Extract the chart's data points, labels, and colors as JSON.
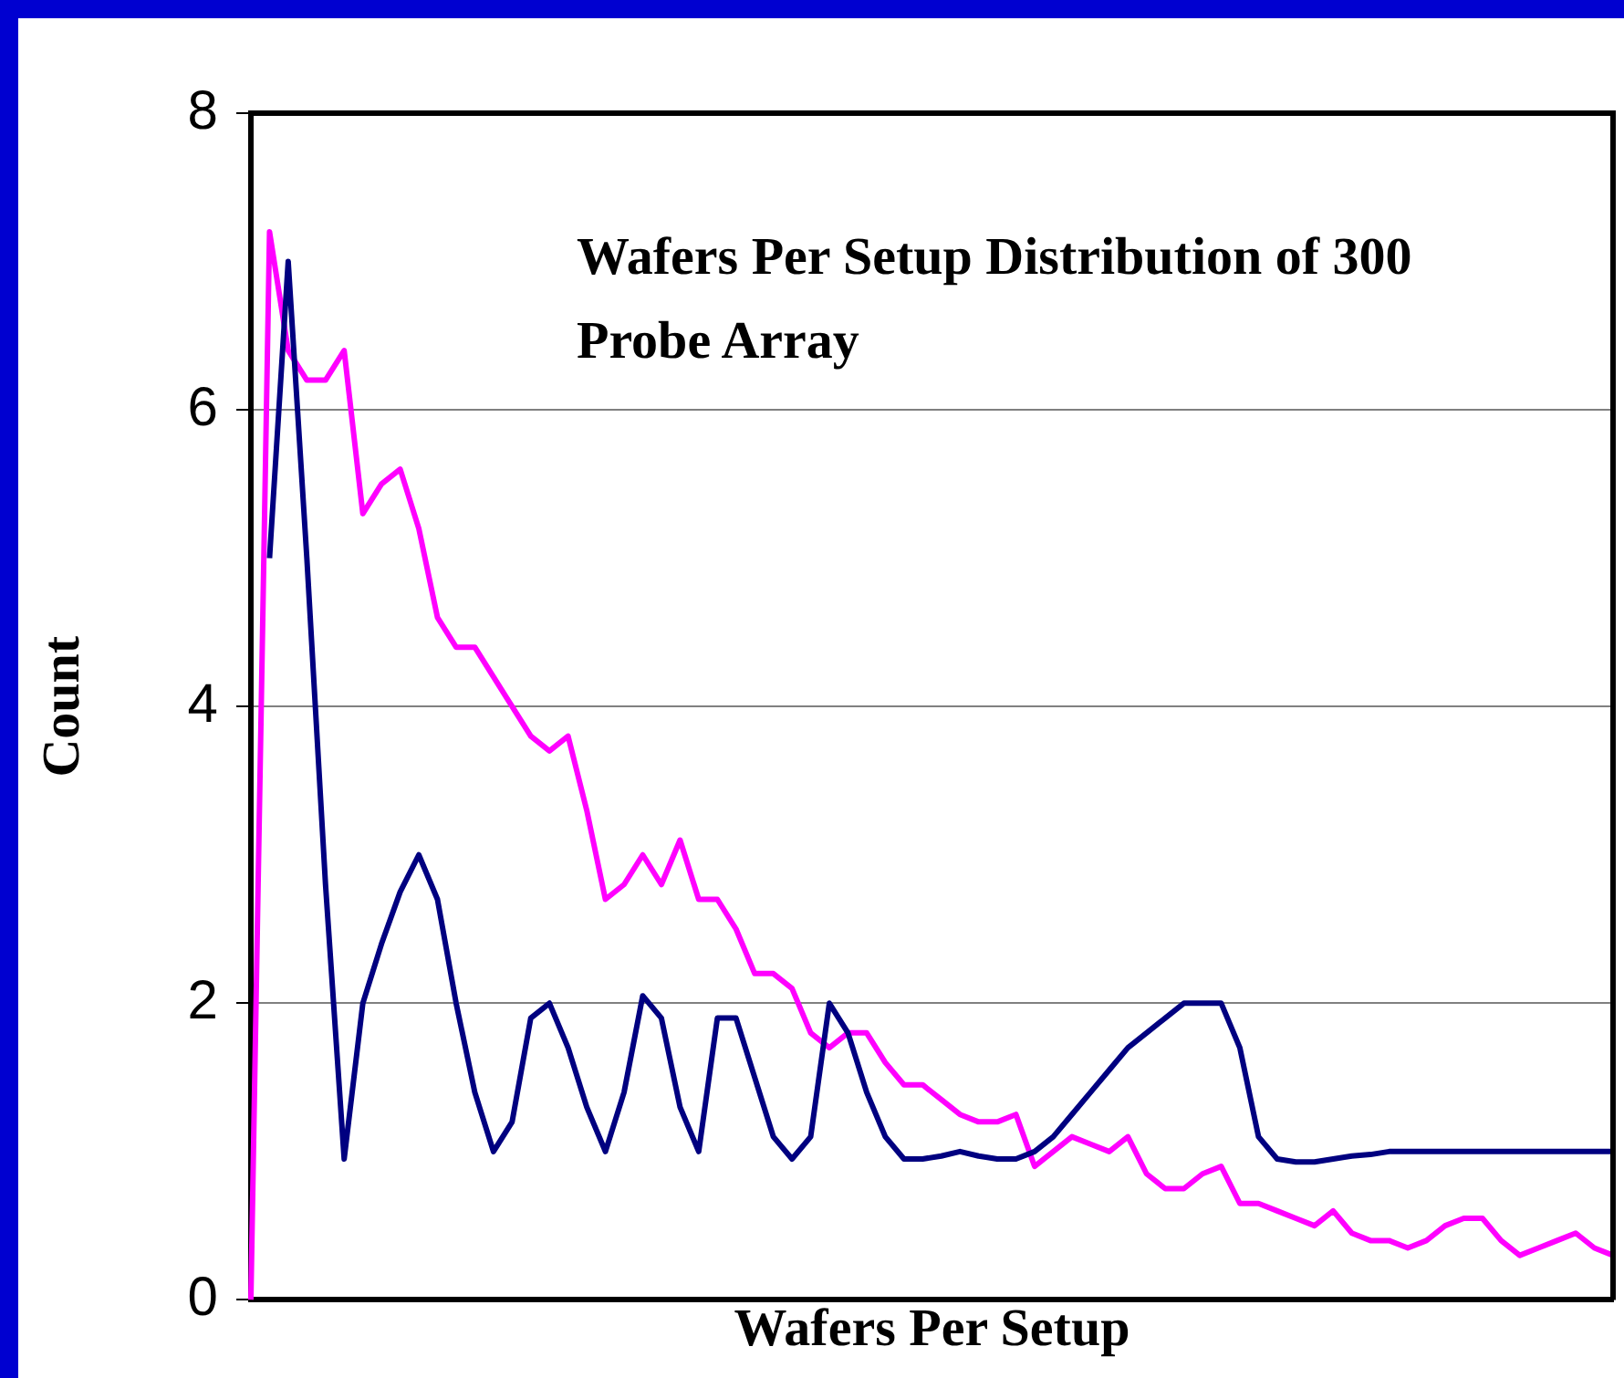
{
  "chart_data": {
    "type": "line",
    "title": "Wafers Per Setup Distribution of 300 Probe Array",
    "xlabel": "Wafers Per Setup",
    "ylabel": "Count",
    "categories": [
      null,
      null,
      null,
      null,
      null,
      null,
      null,
      null,
      null,
      null,
      null,
      null,
      null,
      null,
      null,
      null,
      null,
      null,
      null,
      null,
      null,
      null,
      null,
      null,
      null,
      null,
      null,
      null,
      null,
      null,
      null,
      null,
      null,
      null,
      null,
      null,
      null,
      null,
      null,
      null,
      null,
      null,
      null,
      null,
      null,
      null,
      null,
      null,
      null,
      null,
      null,
      null,
      null,
      null,
      null,
      null,
      null,
      null,
      null,
      null,
      null,
      null,
      null,
      null,
      null,
      null,
      null,
      null,
      null,
      null,
      null,
      null,
      null,
      null
    ],
    "series": [
      {
        "color": "#000080",
        "values": [
          null,
          5.0,
          7.0,
          5.0,
          2.8,
          0.95,
          2.0,
          2.4,
          2.75,
          3.0,
          2.7,
          2.0,
          1.4,
          1.0,
          1.2,
          1.9,
          2.0,
          1.7,
          1.3,
          1.0,
          1.4,
          2.05,
          1.9,
          1.3,
          1.0,
          1.9,
          1.9,
          1.5,
          1.1,
          0.95,
          1.1,
          2.0,
          1.8,
          1.4,
          1.1,
          0.95,
          0.95,
          0.97,
          1.0,
          0.97,
          0.95,
          0.95,
          1.0,
          1.1,
          1.25,
          1.4,
          1.55,
          1.7,
          1.8,
          1.9,
          2.0,
          2.0,
          2.0,
          1.7,
          1.1,
          0.95,
          0.93,
          0.93,
          0.95,
          0.97,
          0.98,
          1.0,
          1.0,
          1.0,
          1.0,
          1.0,
          1.0,
          1.0,
          1.0,
          1.0,
          1.0,
          1.0,
          1.0,
          1.0
        ]
      },
      {
        "color": "#ff00ff",
        "values": [
          0,
          7.2,
          6.4,
          6.2,
          6.2,
          6.4,
          5.3,
          5.5,
          5.6,
          5.2,
          4.6,
          4.4,
          4.4,
          4.2,
          4.0,
          3.8,
          3.7,
          3.8,
          3.3,
          2.7,
          2.8,
          3.0,
          2.8,
          3.1,
          2.7,
          2.7,
          2.5,
          2.2,
          2.2,
          2.1,
          1.8,
          1.7,
          1.8,
          1.8,
          1.6,
          1.45,
          1.45,
          1.35,
          1.25,
          1.2,
          1.2,
          1.25,
          0.9,
          1.0,
          1.1,
          1.05,
          1.0,
          1.1,
          0.85,
          0.75,
          0.75,
          0.85,
          0.9,
          0.65,
          0.65,
          0.6,
          0.55,
          0.5,
          0.6,
          0.45,
          0.4,
          0.4,
          0.35,
          0.4,
          0.5,
          0.55,
          0.55,
          0.4,
          0.3,
          0.35,
          0.4,
          0.45,
          0.35,
          0.3
        ]
      }
    ],
    "ylim": [
      0,
      8
    ],
    "yticks": [
      0,
      2,
      4,
      6,
      8
    ],
    "grid": "y",
    "marker": "none",
    "line_style": "solid"
  }
}
